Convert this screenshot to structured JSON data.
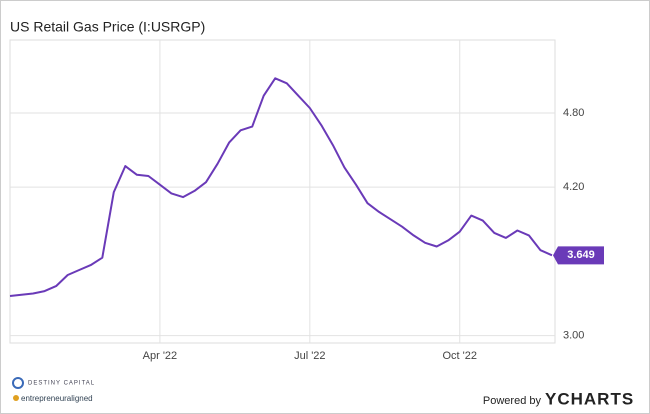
{
  "chart_data": {
    "type": "line",
    "title": "US Retail Gas Price (I:USRGP)",
    "categories": [
      null,
      null,
      null,
      null,
      null,
      null,
      null,
      null,
      null,
      null,
      null,
      null,
      null,
      "Apr '22",
      null,
      null,
      null,
      null,
      null,
      null,
      null,
      null,
      null,
      null,
      null,
      null,
      "Jul '22",
      null,
      null,
      null,
      null,
      null,
      null,
      null,
      null,
      null,
      null,
      null,
      null,
      "Oct '22",
      null,
      null,
      null,
      null,
      null,
      null,
      null,
      null
    ],
    "series": [
      {
        "name": "US Retail Gas Price",
        "color": "#6a3ab8",
        "values": [
          3.32,
          3.33,
          3.34,
          3.36,
          3.4,
          3.49,
          3.53,
          3.57,
          3.63,
          4.16,
          4.37,
          4.3,
          4.29,
          4.22,
          4.15,
          4.12,
          4.17,
          4.24,
          4.39,
          4.56,
          4.66,
          4.69,
          4.94,
          5.08,
          5.04,
          4.94,
          4.84,
          4.7,
          4.54,
          4.36,
          4.22,
          4.07,
          4.0,
          3.94,
          3.88,
          3.81,
          3.75,
          3.72,
          3.77,
          3.84,
          3.97,
          3.93,
          3.83,
          3.79,
          3.85,
          3.81,
          3.69,
          3.649
        ]
      }
    ],
    "ylim": [
      2.94,
      5.39
    ],
    "yticks": [
      {
        "value": 3,
        "label": "3.00"
      },
      {
        "value": 4.2,
        "label": "4.20"
      },
      {
        "value": 4.8,
        "label": "4.80"
      }
    ],
    "grid": true
  },
  "footer": {
    "brand": "DESTINY CAPITAL",
    "brand_sub": "entrepreneuraligned",
    "powered": "Powered by",
    "vendor": "YCHARTS"
  }
}
